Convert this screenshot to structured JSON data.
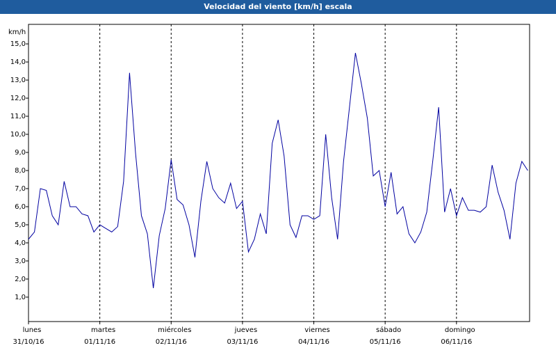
{
  "chart_data": {
    "type": "line",
    "title": "Velocidad del viento [km/h] escala",
    "y_label": "km/h",
    "x": [
      0,
      2,
      4,
      6,
      8,
      10,
      12,
      14,
      16,
      18,
      20,
      22,
      24,
      26,
      28,
      30,
      32,
      34,
      36,
      38,
      40,
      42,
      44,
      46,
      48,
      50,
      52,
      54,
      56,
      58,
      60,
      62,
      64,
      66,
      68,
      70,
      72,
      74,
      76,
      78,
      80,
      82,
      84,
      86,
      88,
      90,
      92,
      94,
      96,
      98,
      100,
      102,
      104,
      106,
      108,
      110,
      112,
      114,
      116,
      118,
      120,
      122,
      124,
      126,
      128,
      130,
      132,
      134,
      136,
      138,
      140,
      142,
      144,
      146,
      148,
      150,
      152,
      154,
      156,
      158,
      160,
      162,
      164,
      166,
      168
    ],
    "series": [
      {
        "name": "Velocidad del viento",
        "color": "#0000a0",
        "values": [
          4.2,
          4.6,
          7.0,
          6.9,
          5.5,
          5.0,
          7.4,
          6.0,
          6.0,
          5.6,
          5.5,
          4.6,
          5.0,
          4.8,
          4.6,
          4.9,
          7.4,
          13.4,
          9.0,
          5.5,
          4.5,
          1.5,
          4.4,
          5.9,
          8.6,
          6.4,
          6.1,
          5.0,
          3.2,
          6.3,
          8.5,
          7.0,
          6.5,
          6.2,
          7.3,
          5.9,
          6.3,
          3.5,
          4.2,
          5.6,
          4.5,
          9.5,
          10.8,
          8.8,
          5.0,
          4.3,
          5.5,
          5.5,
          5.3,
          5.5,
          10.0,
          6.5,
          4.2,
          8.5,
          11.5,
          14.5,
          12.8,
          10.9,
          7.7,
          8.0,
          6.0,
          7.9,
          5.6,
          6.0,
          4.5,
          4.0,
          4.6,
          5.7,
          8.5,
          11.5,
          5.7,
          7.0,
          5.5,
          6.5,
          5.8,
          5.8,
          5.7,
          6.0,
          8.3,
          6.8,
          5.8,
          4.2,
          7.3,
          8.5,
          8.0
        ]
      }
    ],
    "xlim": [
      0,
      168.6
    ],
    "xticks": [
      {
        "value": 0,
        "label": "31/10/16"
      },
      {
        "value": 24,
        "label": "01/11/16"
      },
      {
        "value": 48,
        "label": "02/11/16"
      },
      {
        "value": 72,
        "label": "03/11/16"
      },
      {
        "value": 96,
        "label": "04/11/16"
      },
      {
        "value": 120,
        "label": "05/11/16"
      },
      {
        "value": 144,
        "label": "06/11/16"
      }
    ],
    "xtick_weekdays": [
      "lunes",
      "martes",
      "miércoles",
      "jueves",
      "viernes",
      "sábado",
      "domingo"
    ],
    "ylim": [
      -0.35,
      16.08
    ],
    "yticks": [
      {
        "value": 1,
        "label": "1,0"
      },
      {
        "value": 2,
        "label": "2,0"
      },
      {
        "value": 3,
        "label": "3,0"
      },
      {
        "value": 4,
        "label": "4,0"
      },
      {
        "value": 5,
        "label": "5,0"
      },
      {
        "value": 6,
        "label": "6,0"
      },
      {
        "value": 7,
        "label": "7,0"
      },
      {
        "value": 8,
        "label": "8,0"
      },
      {
        "value": 9,
        "label": "9,0"
      },
      {
        "value": 10,
        "label": "10,0"
      },
      {
        "value": 11,
        "label": "11,0"
      },
      {
        "value": 12,
        "label": "12,0"
      },
      {
        "value": 13,
        "label": "13,0"
      },
      {
        "value": 14,
        "label": "14,0"
      },
      {
        "value": 15,
        "label": "15,0"
      }
    ],
    "grid": "x"
  }
}
